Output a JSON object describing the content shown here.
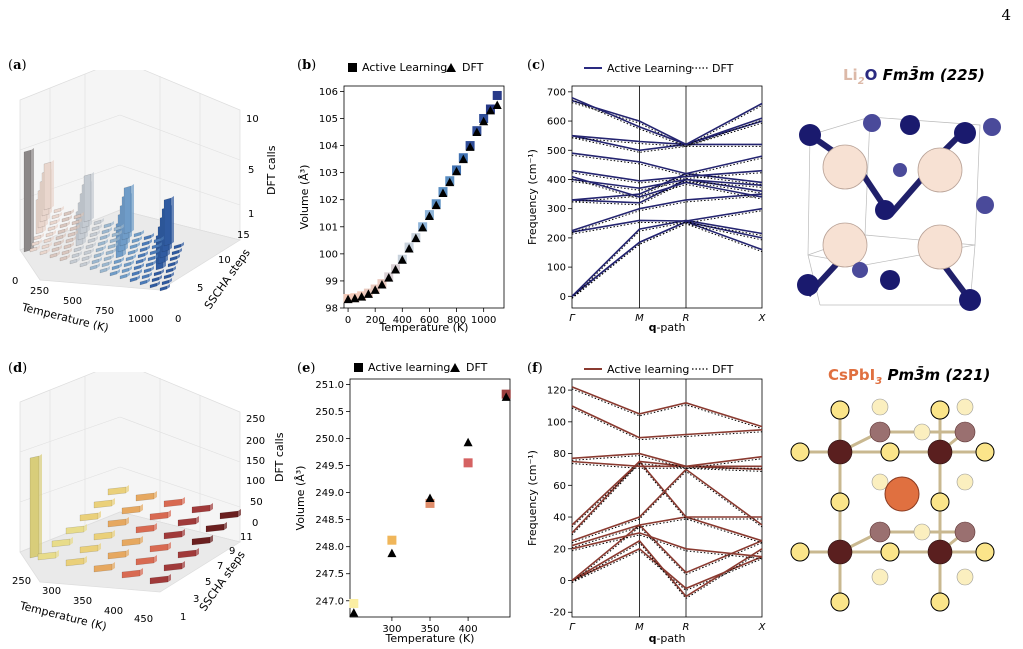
{
  "page_number": "4",
  "panels": {
    "a": "(a)",
    "b": "(b)",
    "c": "(c)",
    "d": "(d)",
    "e": "(e)",
    "f": "(f)"
  },
  "legend": {
    "b_al": "Active Learning",
    "b_dft": "DFT",
    "c_al": "Active Learning",
    "c_dft": "DFT",
    "e_al": "Active learning",
    "e_dft": "DFT",
    "f_al": "Active learning",
    "f_dft": "DFT"
  },
  "axes": {
    "a_x": "Temperature (K)",
    "a_y": "SSCHA steps",
    "a_z": "DFT calls",
    "b_x": "Temperature (K)",
    "b_y": "Volume (Å³)",
    "c_x": "q-path",
    "c_y": "Frequency (cm⁻¹)",
    "d_x": "Temperature (K)",
    "d_y": "SSCHA steps",
    "d_z": "DFT calls",
    "e_x": "Temperature (K)",
    "e_y": "Volume (Å³)",
    "f_x": "q-path",
    "f_y": "Frequency (cm⁻¹)"
  },
  "structures": {
    "top": {
      "formula_a": "Li",
      "formula_sub": "2",
      "formula_b": "O",
      "space_group": "Fm3̄m (225)"
    },
    "bottom": {
      "formula_a": "CsPbI",
      "formula_sub": "3",
      "space_group": "Pm3̄m (221)"
    }
  },
  "chart_data": [
    {
      "panel": "a",
      "type": "bar",
      "x_ticks": [
        "0",
        "250",
        "500",
        "750",
        "1000"
      ],
      "y_ticks": [
        "0",
        "5",
        "10",
        "15"
      ],
      "z_ticks": [
        "1",
        "5",
        "10"
      ],
      "xlabel": "Temperature (K)",
      "ylabel": "SSCHA steps",
      "zlabel": "DFT calls",
      "zlim": [
        0,
        10
      ]
    },
    {
      "panel": "b",
      "type": "scatter",
      "xlabel": "Temperature (K)",
      "ylabel": "Volume (Å³)",
      "xlim": [
        -30,
        1150
      ],
      "ylim": [
        98,
        106.2
      ],
      "x_ticks": [
        0,
        200,
        400,
        600,
        800,
        1000
      ],
      "y_ticks": [
        98,
        99,
        100,
        101,
        102,
        103,
        104,
        105,
        106
      ],
      "series": [
        {
          "name": "Active Learning",
          "x": [
            0,
            50,
            100,
            150,
            200,
            250,
            300,
            350,
            400,
            450,
            500,
            550,
            600,
            650,
            700,
            750,
            800,
            850,
            900,
            950,
            1000,
            1050,
            1100
          ],
          "y": [
            98.35,
            98.38,
            98.45,
            98.55,
            98.7,
            98.9,
            99.15,
            99.45,
            99.8,
            100.25,
            100.6,
            101.0,
            101.45,
            101.85,
            102.3,
            102.7,
            103.1,
            103.55,
            104.0,
            104.55,
            105.0,
            105.35,
            105.85
          ]
        },
        {
          "name": "DFT",
          "x": [
            0,
            50,
            100,
            150,
            200,
            250,
            300,
            350,
            400,
            450,
            500,
            550,
            600,
            650,
            700,
            750,
            800,
            850,
            900,
            950,
            1000,
            1050,
            1100
          ],
          "y": [
            98.33,
            98.36,
            98.42,
            98.52,
            98.67,
            98.87,
            99.12,
            99.42,
            99.78,
            100.2,
            100.58,
            100.98,
            101.4,
            101.8,
            102.25,
            102.65,
            103.05,
            103.5,
            103.95,
            104.5,
            104.9,
            105.3,
            105.5
          ]
        }
      ]
    },
    {
      "panel": "c",
      "type": "line",
      "xlabel": "q-path",
      "ylabel": "Frequency (cm⁻¹)",
      "x_ticks": [
        "Γ",
        "M",
        "R",
        "X"
      ],
      "y_ticks": [
        0,
        100,
        200,
        300,
        400,
        500,
        600,
        700
      ],
      "ylim": [
        -40,
        720
      ],
      "series": [
        {
          "name": "Active Learning",
          "style": "solid"
        },
        {
          "name": "DFT",
          "style": "dotted"
        }
      ]
    },
    {
      "panel": "d",
      "type": "bar",
      "x_ticks": [
        "250",
        "300",
        "350",
        "400",
        "450"
      ],
      "y_ticks": [
        "1",
        "3",
        "5",
        "7",
        "9",
        "11"
      ],
      "z_ticks": [
        "0",
        "50",
        "100",
        "150",
        "200",
        "250"
      ],
      "xlabel": "Temperature (K)",
      "ylabel": "SSCHA steps",
      "zlabel": "DFT calls",
      "zlim": [
        0,
        250
      ]
    },
    {
      "panel": "e",
      "type": "scatter",
      "xlabel": "Temperature (K)",
      "ylabel": "Volume (Å³)",
      "xlim": [
        245,
        455
      ],
      "ylim": [
        246.7,
        251.1
      ],
      "x_ticks": [
        300,
        350,
        400
      ],
      "y_ticks": [
        247.0,
        247.5,
        248.0,
        248.5,
        249.0,
        249.5,
        250.0,
        250.5,
        251.0
      ],
      "series": [
        {
          "name": "Active learning",
          "x": [
            250,
            300,
            350,
            400,
            450
          ],
          "y": [
            246.95,
            248.12,
            248.8,
            249.55,
            250.82
          ]
        },
        {
          "name": "DFT",
          "x": [
            250,
            300,
            350,
            400,
            450
          ],
          "y": [
            246.78,
            247.88,
            248.9,
            249.93,
            250.77
          ]
        }
      ]
    },
    {
      "panel": "f",
      "type": "line",
      "xlabel": "q-path",
      "ylabel": "Frequency (cm⁻¹)",
      "x_ticks": [
        "Γ",
        "M",
        "R",
        "X"
      ],
      "y_ticks": [
        -20,
        0,
        20,
        40,
        60,
        80,
        100,
        120
      ],
      "ylim": [
        -23,
        127
      ],
      "series": [
        {
          "name": "Active learning",
          "style": "solid"
        },
        {
          "name": "DFT",
          "style": "dotted"
        }
      ]
    }
  ]
}
